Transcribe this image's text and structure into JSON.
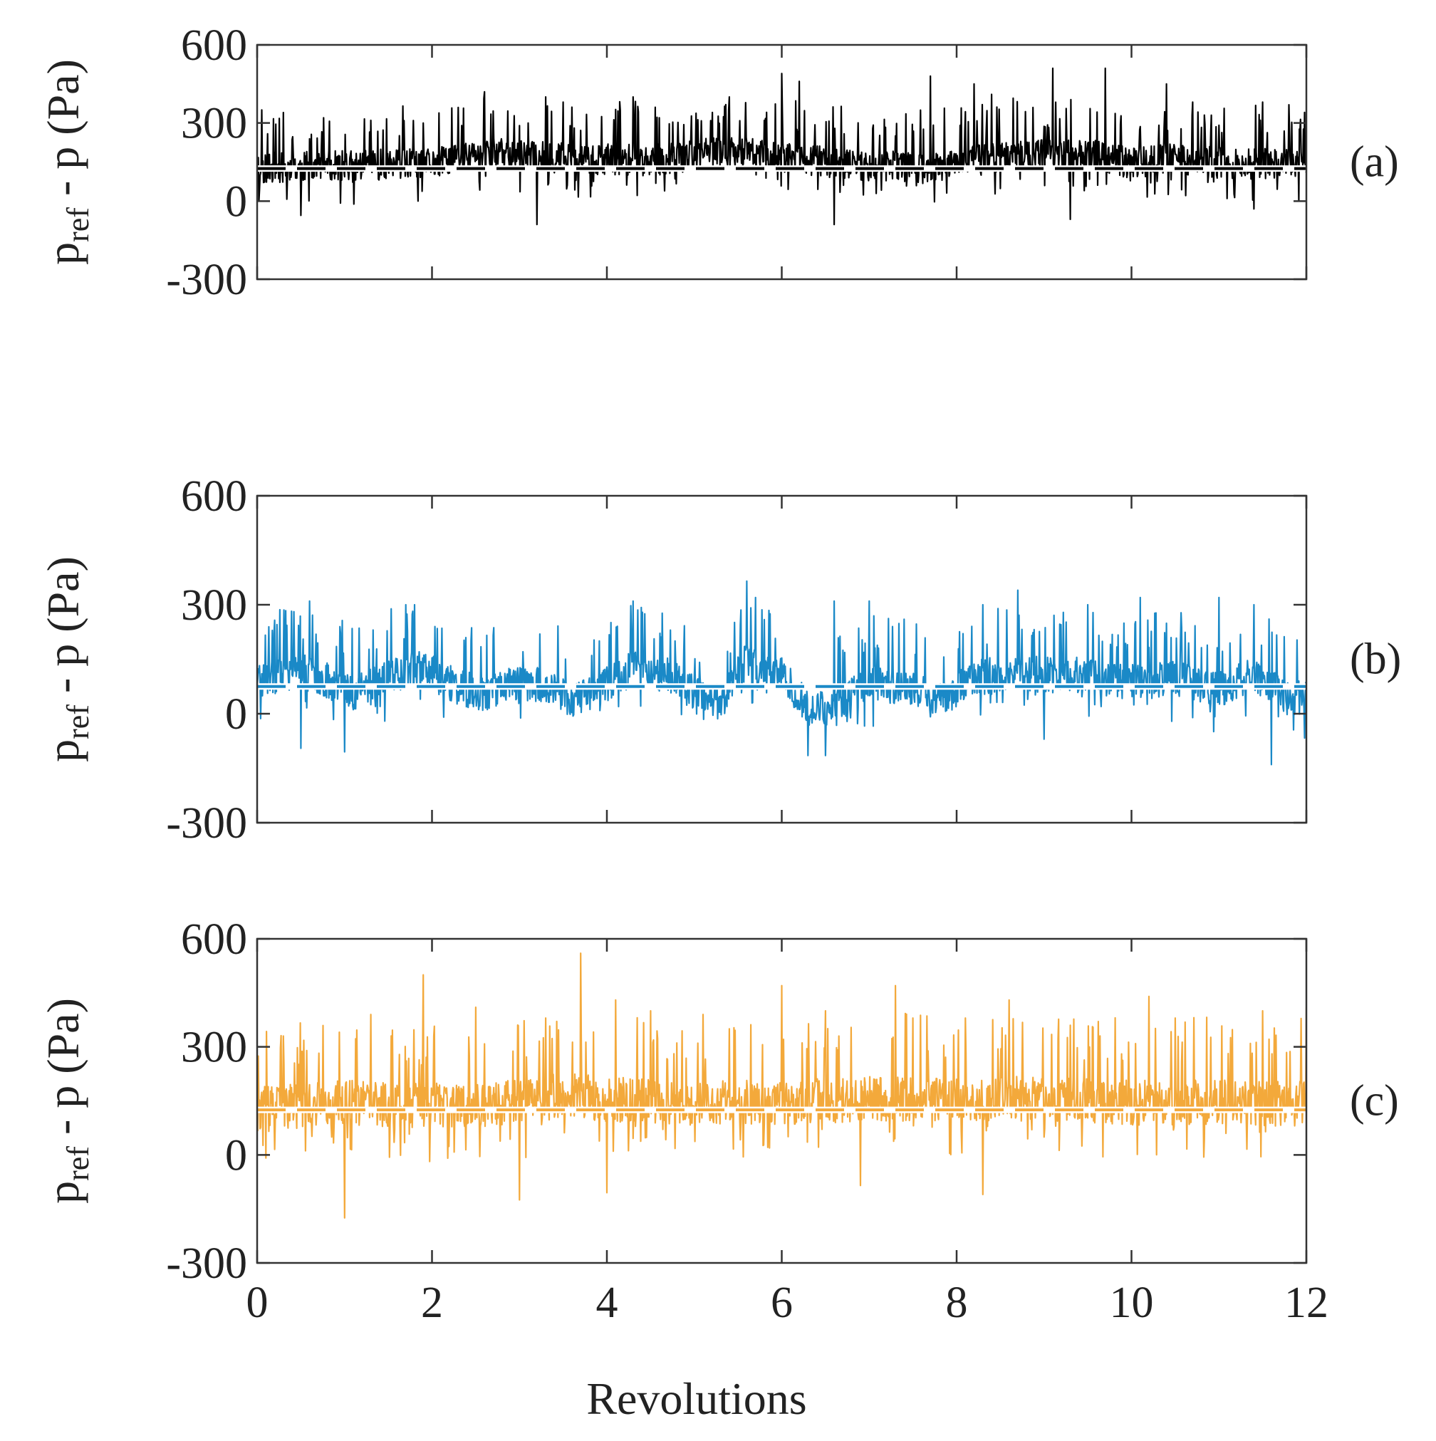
{
  "chart_data": [
    {
      "panel": "(a)",
      "type": "line",
      "color": "#000000",
      "ylabel": "p_ref - p (Pa)",
      "xlabel": "",
      "xlim": [
        0,
        12
      ],
      "ylim": [
        -300,
        600
      ],
      "yticks": [
        "600",
        "300",
        "0",
        "-300"
      ],
      "xticks": [
        "0",
        "2",
        "4",
        "6",
        "8",
        "10",
        "12"
      ],
      "mean_line": 125,
      "seed": 11,
      "envelope": [
        [
          0,
          130
        ],
        [
          1,
          140
        ],
        [
          2,
          150
        ],
        [
          2.6,
          190
        ],
        [
          3.5,
          170
        ],
        [
          4.5,
          160
        ],
        [
          5.5,
          200
        ],
        [
          6,
          170
        ],
        [
          7,
          140
        ],
        [
          7.7,
          130
        ],
        [
          8.5,
          175
        ],
        [
          9.5,
          185
        ],
        [
          10,
          150
        ],
        [
          10.5,
          170
        ],
        [
          11,
          150
        ],
        [
          12,
          145
        ]
      ],
      "spread": 85,
      "spikes": [
        [
          0.05,
          350
        ],
        [
          0.3,
          340
        ],
        [
          1.3,
          310
        ],
        [
          1.9,
          300
        ],
        [
          2.6,
          420
        ],
        [
          3.1,
          300
        ],
        [
          3.3,
          400
        ],
        [
          3.5,
          380
        ],
        [
          4.3,
          400
        ],
        [
          4.6,
          320
        ],
        [
          5.4,
          400
        ],
        [
          5.8,
          310
        ],
        [
          6,
          490
        ],
        [
          6.2,
          460
        ],
        [
          6.6,
          -90
        ],
        [
          7.3,
          250
        ],
        [
          7.7,
          480
        ],
        [
          8.2,
          450
        ],
        [
          8.4,
          410
        ],
        [
          9.1,
          510
        ],
        [
          9.7,
          510
        ],
        [
          10.4,
          450
        ],
        [
          10.7,
          380
        ],
        [
          11.5,
          380
        ],
        [
          11.8,
          370
        ],
        [
          3.2,
          -90
        ],
        [
          0.5,
          -55
        ],
        [
          9.3,
          -70
        ],
        [
          11.4,
          -30
        ]
      ]
    },
    {
      "panel": "(b)",
      "type": "line",
      "color": "#1a89c7",
      "ylabel": "p_ref - p (Pa)",
      "xlabel": "",
      "xlim": [
        0,
        12
      ],
      "ylim": [
        -300,
        600
      ],
      "yticks": [
        "600",
        "300",
        "0",
        "-300"
      ],
      "xticks": [
        "0",
        "2",
        "4",
        "6",
        "8",
        "10",
        "12"
      ],
      "mean_line": 75,
      "seed": 23,
      "envelope": [
        [
          0,
          95
        ],
        [
          0.5,
          120
        ],
        [
          0.8,
          95
        ],
        [
          1.1,
          60
        ],
        [
          1.5,
          110
        ],
        [
          1.9,
          130
        ],
        [
          2.3,
          75
        ],
        [
          2.6,
          60
        ],
        [
          2.9,
          90
        ],
        [
          3.3,
          80
        ],
        [
          3.6,
          40
        ],
        [
          3.9,
          70
        ],
        [
          4.3,
          130
        ],
        [
          4.7,
          110
        ],
        [
          5,
          60
        ],
        [
          5.3,
          35
        ],
        [
          5.6,
          150
        ],
        [
          6,
          110
        ],
        [
          6.3,
          20
        ],
        [
          6.6,
          20
        ],
        [
          7,
          90
        ],
        [
          7.5,
          70
        ],
        [
          7.8,
          40
        ],
        [
          8.2,
          100
        ],
        [
          8.6,
          120
        ],
        [
          9,
          110
        ],
        [
          9.5,
          110
        ],
        [
          10,
          90
        ],
        [
          10.5,
          100
        ],
        [
          11,
          70
        ],
        [
          11.4,
          110
        ],
        [
          11.8,
          40
        ],
        [
          12,
          55
        ]
      ],
      "spread": 70,
      "spikes": [
        [
          0.6,
          310
        ],
        [
          1.7,
          300
        ],
        [
          1.8,
          300
        ],
        [
          4.3,
          310
        ],
        [
          5.6,
          365
        ],
        [
          5.7,
          320
        ],
        [
          6.6,
          310
        ],
        [
          7,
          310
        ],
        [
          7.4,
          260
        ],
        [
          8.3,
          300
        ],
        [
          8.7,
          340
        ],
        [
          9.5,
          300
        ],
        [
          10.1,
          320
        ],
        [
          11,
          320
        ],
        [
          11.4,
          300
        ],
        [
          0.5,
          -95
        ],
        [
          1,
          -105
        ],
        [
          6.3,
          -115
        ],
        [
          6.5,
          -115
        ],
        [
          11.6,
          -140
        ],
        [
          9,
          -70
        ]
      ]
    },
    {
      "panel": "(c)",
      "type": "line",
      "color": "#f3a93b",
      "ylabel": "p_ref - p (Pa)",
      "xlabel": "Revolutions",
      "xlim": [
        0,
        12
      ],
      "ylim": [
        -300,
        600
      ],
      "yticks": [
        "600",
        "300",
        "0",
        "-300"
      ],
      "xticks": [
        "0",
        "2",
        "4",
        "6",
        "8",
        "10",
        "12"
      ],
      "mean_line": 125,
      "seed": 37,
      "envelope": [
        [
          0,
          130
        ],
        [
          1,
          150
        ],
        [
          2,
          140
        ],
        [
          3,
          150
        ],
        [
          3.5,
          170
        ],
        [
          4,
          160
        ],
        [
          5,
          150
        ],
        [
          6,
          150
        ],
        [
          7,
          160
        ],
        [
          8,
          160
        ],
        [
          9,
          160
        ],
        [
          10,
          150
        ],
        [
          11,
          150
        ],
        [
          12,
          145
        ]
      ],
      "spread": 90,
      "spikes": [
        [
          0.3,
          330
        ],
        [
          1.3,
          390
        ],
        [
          1.9,
          500
        ],
        [
          2.5,
          410
        ],
        [
          3.3,
          380
        ],
        [
          3.7,
          560
        ],
        [
          4.1,
          430
        ],
        [
          4.5,
          400
        ],
        [
          5.1,
          390
        ],
        [
          5.4,
          350
        ],
        [
          6,
          470
        ],
        [
          6.5,
          400
        ],
        [
          7.3,
          470
        ],
        [
          7.5,
          380
        ],
        [
          8.1,
          380
        ],
        [
          8.6,
          430
        ],
        [
          9.3,
          360
        ],
        [
          10.2,
          440
        ],
        [
          10.5,
          380
        ],
        [
          11.5,
          400
        ],
        [
          12,
          410
        ],
        [
          1,
          -175
        ],
        [
          3,
          -125
        ],
        [
          4,
          -105
        ],
        [
          8.3,
          -110
        ],
        [
          6.9,
          -85
        ]
      ]
    }
  ]
}
